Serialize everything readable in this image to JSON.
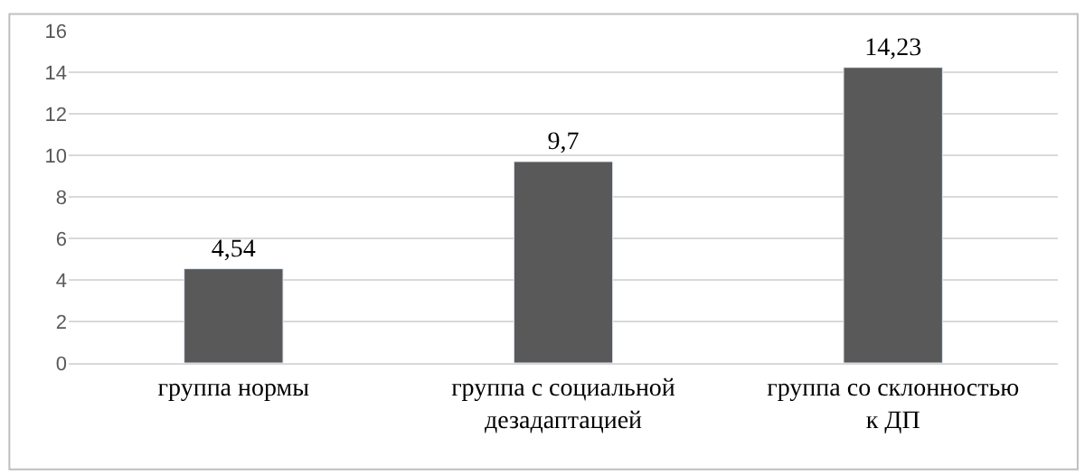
{
  "chart_data": {
    "type": "bar",
    "categories": [
      "группа нормы",
      "группа с социальной\nдезадаптацией",
      "группа со склонностью\nк ДП"
    ],
    "values": [
      4.54,
      9.7,
      14.23
    ],
    "value_labels": [
      "4,54",
      "9,7",
      "14,23"
    ],
    "color": "#595959",
    "ylim": [
      0,
      16
    ],
    "yticks": [
      0,
      2,
      4,
      6,
      8,
      10,
      12,
      14,
      16
    ],
    "grid": "y",
    "legend": false
  }
}
